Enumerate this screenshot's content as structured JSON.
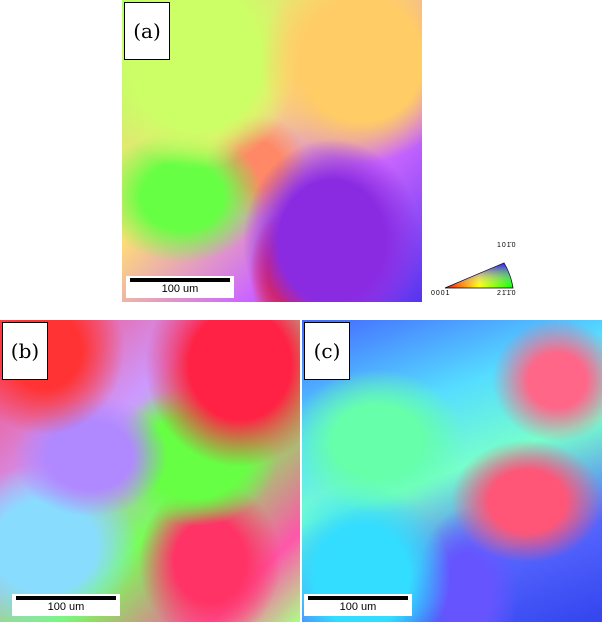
{
  "panels": [
    {
      "id": "a",
      "label": "(a)",
      "scale_bar": "100 um"
    },
    {
      "id": "b",
      "label": "(b)",
      "scale_bar": "100 um"
    },
    {
      "id": "c",
      "label": "(c)",
      "scale_bar": "100 um"
    }
  ],
  "legend": {
    "type": "inverse pole figure color key",
    "corner_top": "101̄0",
    "corner_left": "0001",
    "corner_right": "21̄1̄0",
    "colors": {
      "0001": "#ff0000",
      "21-10": "#00ff00",
      "10-10": "#0000ff"
    }
  }
}
